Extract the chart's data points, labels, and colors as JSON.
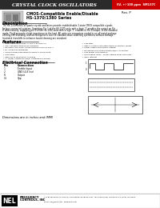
{
  "title": "CRYSTAL CLOCK OSCILLATORS",
  "title_bg": "#2b2b2b",
  "title_text_color": "#ffffff",
  "red_badge_text": "5V, +/-100 ppm  SM137C",
  "red_badge_bg": "#cc0000",
  "rev_text": "Rev. P",
  "subtitle1": "CMOS-Compatible Enable/Disable",
  "subtitle2": "HS-1370/1380 Series",
  "description_title": "Description",
  "description_body": "The HS-1370 Series of quartz crystal oscillators provide enable/disable 3-state CMOS compatible signals\nfor bus connected systems. Supplying Pin 1 of the HS-1370 units with a logic '1' enables the output on Pin\n8. Alternatively, supplying pin 1 of the HS-1380 units with a logic '1' enables to Pin 8 output. In the disabled\nmode, Pin 8 presents a high impedance to the load. All units use resonators sealed in an all metal package\noffering EMI shielding, and are designed to survive standard wave soldering operations without damage.\nInsulated standoffs to enhance board cleaning are standard.",
  "features_title": "Features",
  "features_left": [
    "Wide frequency range: 0.100 to to 2000 Hz",
    "User specified tolerances available",
    "Will withstand vapor phase temperatures of 230°C",
    "for 4 minutes maximum",
    "Space saving alternative to discrete component",
    "oscillators",
    "High shock resistance, to 5000g",
    "All metal, resistance-weld, hermetically-sealed",
    "package"
  ],
  "features_right": [
    "Low Jitter",
    "High-Q Crystal oscillators tuned oscillation circuit",
    "Power supply-decoupling integral",
    "No internal Pin enable trimming/PLL problems",
    "Low power consumption",
    "Gold plated leads - Solder dipped leads available",
    "upon request"
  ],
  "elec_conn_title": "Electrical Connection",
  "pin_header": [
    "Pin",
    "Connection"
  ],
  "pin_data": [
    [
      "1",
      "Enable Input"
    ],
    [
      "2",
      "GND (4-8 line)"
    ],
    [
      "8",
      "Output"
    ],
    [
      "14",
      "Vpp"
    ]
  ],
  "dimensions_text": "Dimensions are in inches and (MM)",
  "logo_text": "NEL",
  "company1": "FREQUENCY",
  "company2": "CONTROLS, INC",
  "footer_text": "117 Bauer Drive, P.O. Box 467, Burlington, NJ 08106-0467; Tel: Phone (609) 764-3400, FAX (609) 764-3468\nEmail: nel@nelfc.com   www.nelfc.com",
  "page_bg": "#ffffff"
}
